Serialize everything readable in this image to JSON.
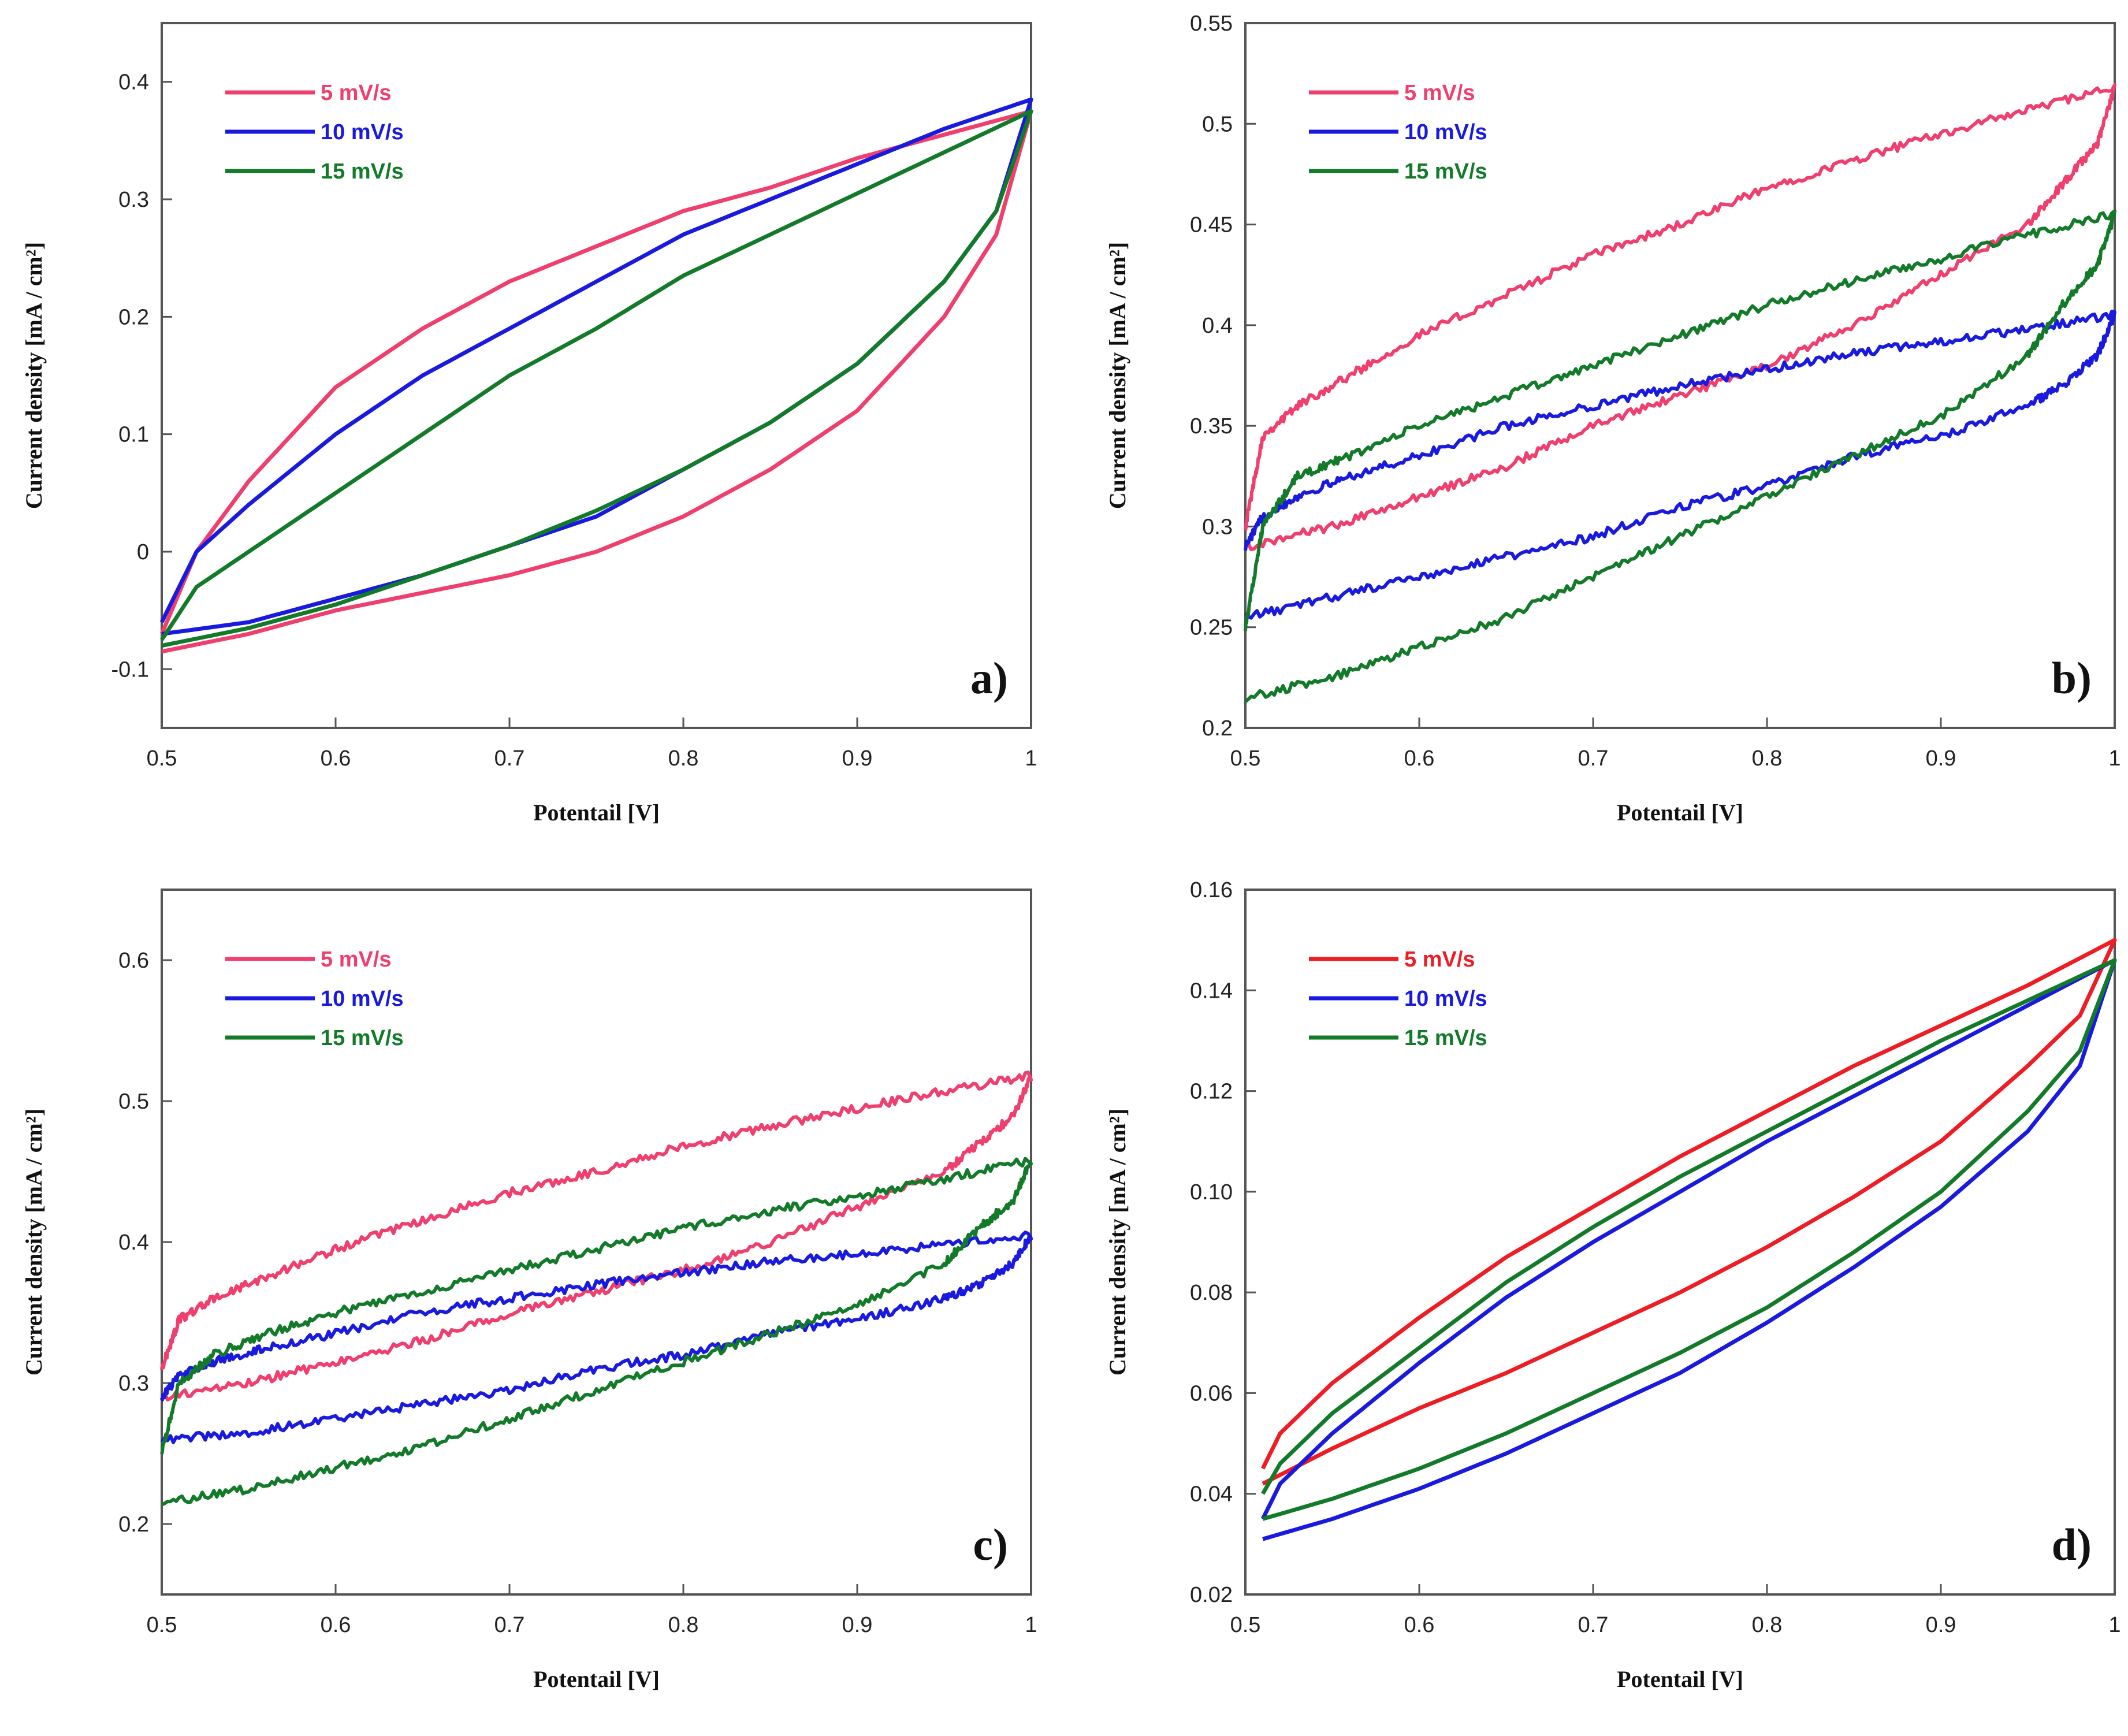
{
  "chart_data": [
    {
      "type": "line",
      "panel_label": "a)",
      "xlabel": "Potentail [V]",
      "ylabel": "Current density [mA / cm²]",
      "xlim": [
        0.5,
        1.0
      ],
      "ylim": [
        -0.15,
        0.45
      ],
      "xticks": [
        "0.5",
        "0.6",
        "0.7",
        "0.8",
        "0.9",
        "1"
      ],
      "yticks": [
        "-0.1",
        "0",
        "0.1",
        "0.2",
        "0.3",
        "0.4"
      ],
      "ytick_values": [
        -0.1,
        0,
        0.1,
        0.2,
        0.3,
        0.4
      ],
      "legend": [
        "5 mV/s",
        "10 mV/s",
        "15 mV/s"
      ],
      "colors": [
        "#ef3f6e",
        "#1a1adf",
        "#137a2a"
      ],
      "noisy": false,
      "series": [
        {
          "name": "5 mV/s",
          "anodic_x": [
            0.5,
            0.52,
            0.55,
            0.6,
            0.65,
            0.7,
            0.75,
            0.8,
            0.85,
            0.9,
            0.95,
            1.0
          ],
          "anodic_y": [
            -0.07,
            0.0,
            0.06,
            0.14,
            0.19,
            0.23,
            0.26,
            0.29,
            0.31,
            0.335,
            0.355,
            0.375
          ],
          "cathodic_x": [
            1.0,
            0.98,
            0.95,
            0.9,
            0.85,
            0.8,
            0.75,
            0.7,
            0.65,
            0.6,
            0.55,
            0.5
          ],
          "cathodic_y": [
            0.375,
            0.27,
            0.2,
            0.12,
            0.07,
            0.03,
            0.0,
            -0.02,
            -0.035,
            -0.05,
            -0.07,
            -0.085
          ]
        },
        {
          "name": "10 mV/s",
          "anodic_x": [
            0.5,
            0.52,
            0.55,
            0.6,
            0.65,
            0.7,
            0.75,
            0.8,
            0.85,
            0.9,
            0.95,
            1.0
          ],
          "anodic_y": [
            -0.06,
            0.0,
            0.04,
            0.1,
            0.15,
            0.19,
            0.23,
            0.27,
            0.3,
            0.33,
            0.36,
            0.385
          ],
          "cathodic_x": [
            1.0,
            0.98,
            0.95,
            0.9,
            0.85,
            0.8,
            0.75,
            0.7,
            0.65,
            0.6,
            0.55,
            0.5
          ],
          "cathodic_y": [
            0.385,
            0.29,
            0.23,
            0.16,
            0.11,
            0.07,
            0.03,
            0.005,
            -0.02,
            -0.04,
            -0.06,
            -0.07
          ]
        },
        {
          "name": "15 mV/s",
          "anodic_x": [
            0.5,
            0.52,
            0.55,
            0.6,
            0.65,
            0.7,
            0.75,
            0.8,
            0.85,
            0.9,
            0.95,
            1.0
          ],
          "anodic_y": [
            -0.075,
            -0.03,
            0.0,
            0.05,
            0.1,
            0.15,
            0.19,
            0.235,
            0.27,
            0.305,
            0.34,
            0.375
          ],
          "cathodic_x": [
            1.0,
            0.98,
            0.95,
            0.9,
            0.85,
            0.8,
            0.75,
            0.7,
            0.65,
            0.6,
            0.55,
            0.5
          ],
          "cathodic_y": [
            0.375,
            0.29,
            0.23,
            0.16,
            0.11,
            0.07,
            0.035,
            0.005,
            -0.02,
            -0.045,
            -0.065,
            -0.08
          ]
        }
      ]
    },
    {
      "type": "line",
      "panel_label": "b)",
      "xlabel": "Potentail [V]",
      "ylabel": "Current density [mA / cm²]",
      "xlim": [
        0.5,
        1.0
      ],
      "ylim": [
        0.2,
        0.55
      ],
      "xticks": [
        "0.5",
        "0.6",
        "0.7",
        "0.8",
        "0.9",
        "1"
      ],
      "yticks": [
        "0.2",
        "0.25",
        "0.3",
        "0.35",
        "0.4",
        "0.45",
        "0.5",
        "0.55"
      ],
      "ytick_values": [
        0.2,
        0.25,
        0.3,
        0.35,
        0.4,
        0.45,
        0.5,
        0.55
      ],
      "legend": [
        "5 mV/s",
        "10 mV/s",
        "15 mV/s"
      ],
      "colors": [
        "#ef3f6e",
        "#1a1adf",
        "#137a2a"
      ],
      "noisy": true,
      "series": [
        {
          "name": "5 mV/s",
          "anodic_x": [
            0.5,
            0.51,
            0.53,
            0.56,
            0.6,
            0.65,
            0.7,
            0.75,
            0.8,
            0.85,
            0.9,
            0.95,
            1.0
          ],
          "anodic_y": [
            0.3,
            0.345,
            0.36,
            0.375,
            0.395,
            0.415,
            0.435,
            0.45,
            0.468,
            0.482,
            0.495,
            0.507,
            0.518
          ],
          "cathodic_x": [
            1.0,
            0.99,
            0.97,
            0.95,
            0.9,
            0.85,
            0.8,
            0.75,
            0.7,
            0.65,
            0.6,
            0.55,
            0.5
          ],
          "cathodic_y": [
            0.518,
            0.49,
            0.47,
            0.45,
            0.425,
            0.4,
            0.38,
            0.365,
            0.35,
            0.33,
            0.315,
            0.3,
            0.29
          ]
        },
        {
          "name": "10 mV/s",
          "anodic_x": [
            0.5,
            0.51,
            0.53,
            0.56,
            0.6,
            0.65,
            0.7,
            0.75,
            0.8,
            0.85,
            0.9,
            0.95,
            1.0
          ],
          "anodic_y": [
            0.29,
            0.305,
            0.315,
            0.325,
            0.335,
            0.35,
            0.36,
            0.37,
            0.378,
            0.386,
            0.392,
            0.398,
            0.405
          ],
          "cathodic_x": [
            1.0,
            0.99,
            0.97,
            0.95,
            0.9,
            0.85,
            0.8,
            0.75,
            0.7,
            0.65,
            0.6,
            0.55,
            0.5
          ],
          "cathodic_y": [
            0.405,
            0.385,
            0.37,
            0.36,
            0.345,
            0.335,
            0.32,
            0.31,
            0.295,
            0.285,
            0.275,
            0.265,
            0.255
          ]
        },
        {
          "name": "15 mV/s",
          "anodic_x": [
            0.5,
            0.51,
            0.53,
            0.56,
            0.6,
            0.65,
            0.7,
            0.75,
            0.8,
            0.85,
            0.9,
            0.95,
            1.0
          ],
          "anodic_y": [
            0.25,
            0.3,
            0.325,
            0.335,
            0.35,
            0.365,
            0.38,
            0.395,
            0.41,
            0.422,
            0.433,
            0.445,
            0.455
          ],
          "cathodic_x": [
            1.0,
            0.99,
            0.97,
            0.95,
            0.9,
            0.85,
            0.8,
            0.75,
            0.7,
            0.65,
            0.6,
            0.55,
            0.5
          ],
          "cathodic_y": [
            0.455,
            0.43,
            0.41,
            0.385,
            0.355,
            0.335,
            0.315,
            0.295,
            0.275,
            0.255,
            0.24,
            0.225,
            0.215
          ]
        }
      ]
    },
    {
      "type": "line",
      "panel_label": "c)",
      "xlabel": "Potentail [V]",
      "ylabel": "Current density [mA / cm²]",
      "xlim": [
        0.5,
        1.0
      ],
      "ylim": [
        0.15,
        0.65
      ],
      "xticks": [
        "0.5",
        "0.6",
        "0.7",
        "0.8",
        "0.9",
        "1"
      ],
      "yticks": [
        "0.2",
        "0.3",
        "0.4",
        "0.5",
        "0.6"
      ],
      "ytick_values": [
        0.2,
        0.3,
        0.4,
        0.5,
        0.6
      ],
      "legend": [
        "5 mV/s",
        "10 mV/s",
        "15 mV/s"
      ],
      "colors": [
        "#ef3f6e",
        "#1a1adf",
        "#137a2a"
      ],
      "noisy": true,
      "series": [
        {
          "name": "5 mV/s",
          "anodic_x": [
            0.5,
            0.51,
            0.53,
            0.56,
            0.6,
            0.65,
            0.7,
            0.75,
            0.8,
            0.85,
            0.9,
            0.95,
            1.0
          ],
          "anodic_y": [
            0.31,
            0.345,
            0.36,
            0.375,
            0.395,
            0.415,
            0.435,
            0.45,
            0.468,
            0.482,
            0.495,
            0.507,
            0.518
          ],
          "cathodic_x": [
            1.0,
            0.99,
            0.97,
            0.95,
            0.9,
            0.85,
            0.8,
            0.75,
            0.7,
            0.65,
            0.6,
            0.55,
            0.5
          ],
          "cathodic_y": [
            0.518,
            0.49,
            0.47,
            0.45,
            0.425,
            0.4,
            0.38,
            0.365,
            0.35,
            0.33,
            0.315,
            0.3,
            0.29
          ]
        },
        {
          "name": "10 mV/s",
          "anodic_x": [
            0.5,
            0.51,
            0.53,
            0.56,
            0.6,
            0.65,
            0.7,
            0.75,
            0.8,
            0.85,
            0.9,
            0.95,
            1.0
          ],
          "anodic_y": [
            0.29,
            0.305,
            0.315,
            0.325,
            0.335,
            0.35,
            0.36,
            0.37,
            0.378,
            0.386,
            0.392,
            0.398,
            0.405
          ],
          "cathodic_x": [
            1.0,
            0.99,
            0.97,
            0.95,
            0.9,
            0.85,
            0.8,
            0.75,
            0.7,
            0.65,
            0.6,
            0.55,
            0.5
          ],
          "cathodic_y": [
            0.405,
            0.385,
            0.37,
            0.36,
            0.345,
            0.335,
            0.32,
            0.31,
            0.295,
            0.285,
            0.275,
            0.265,
            0.26
          ]
        },
        {
          "name": "15 mV/s",
          "anodic_x": [
            0.5,
            0.51,
            0.53,
            0.56,
            0.6,
            0.65,
            0.7,
            0.75,
            0.8,
            0.85,
            0.9,
            0.95,
            1.0
          ],
          "anodic_y": [
            0.25,
            0.3,
            0.32,
            0.335,
            0.35,
            0.365,
            0.38,
            0.395,
            0.41,
            0.422,
            0.433,
            0.445,
            0.458
          ],
          "cathodic_x": [
            1.0,
            0.99,
            0.97,
            0.95,
            0.9,
            0.85,
            0.8,
            0.75,
            0.7,
            0.65,
            0.6,
            0.55,
            0.5
          ],
          "cathodic_y": [
            0.458,
            0.43,
            0.41,
            0.385,
            0.355,
            0.335,
            0.315,
            0.295,
            0.275,
            0.255,
            0.24,
            0.225,
            0.215
          ]
        }
      ]
    },
    {
      "type": "line",
      "panel_label": "d)",
      "xlabel": "Potentail [V]",
      "ylabel": "Current density [mA / cm²]",
      "xlim": [
        0.5,
        1.0
      ],
      "ylim": [
        0.02,
        0.16
      ],
      "xticks": [
        "0.5",
        "0.6",
        "0.7",
        "0.8",
        "0.9",
        "1"
      ],
      "yticks": [
        "0.02",
        "0.04",
        "0.06",
        "0.08",
        "0.10",
        "0.12",
        "0.14",
        "0.16"
      ],
      "ytick_values": [
        0.02,
        0.04,
        0.06,
        0.08,
        0.1,
        0.12,
        0.14,
        0.16
      ],
      "legend": [
        "5 mV/s",
        "10 mV/s",
        "15 mV/s"
      ],
      "colors": [
        "#ee1c24",
        "#1a1adf",
        "#137a2a"
      ],
      "noisy": false,
      "series": [
        {
          "name": "5 mV/s",
          "anodic_x": [
            0.51,
            0.52,
            0.55,
            0.6,
            0.65,
            0.7,
            0.75,
            0.8,
            0.85,
            0.9,
            0.95,
            1.0
          ],
          "anodic_y": [
            0.045,
            0.052,
            0.062,
            0.075,
            0.087,
            0.097,
            0.107,
            0.116,
            0.125,
            0.133,
            0.141,
            0.15
          ],
          "cathodic_x": [
            1.0,
            0.98,
            0.95,
            0.9,
            0.85,
            0.8,
            0.75,
            0.7,
            0.65,
            0.6,
            0.55,
            0.51
          ],
          "cathodic_y": [
            0.15,
            0.135,
            0.125,
            0.11,
            0.099,
            0.089,
            0.08,
            0.072,
            0.064,
            0.057,
            0.049,
            0.042
          ]
        },
        {
          "name": "10 mV/s",
          "anodic_x": [
            0.51,
            0.52,
            0.55,
            0.6,
            0.65,
            0.7,
            0.75,
            0.8,
            0.85,
            0.9,
            0.95,
            1.0
          ],
          "anodic_y": [
            0.035,
            0.042,
            0.052,
            0.066,
            0.079,
            0.09,
            0.1,
            0.11,
            0.119,
            0.128,
            0.137,
            0.146
          ],
          "cathodic_x": [
            1.0,
            0.98,
            0.95,
            0.9,
            0.85,
            0.8,
            0.75,
            0.7,
            0.65,
            0.6,
            0.55,
            0.51
          ],
          "cathodic_y": [
            0.146,
            0.125,
            0.112,
            0.097,
            0.085,
            0.074,
            0.064,
            0.056,
            0.048,
            0.041,
            0.035,
            0.031
          ]
        },
        {
          "name": "15 mV/s",
          "anodic_x": [
            0.51,
            0.52,
            0.55,
            0.6,
            0.65,
            0.7,
            0.75,
            0.8,
            0.85,
            0.9,
            0.95,
            1.0
          ],
          "anodic_y": [
            0.04,
            0.046,
            0.056,
            0.069,
            0.082,
            0.093,
            0.103,
            0.112,
            0.121,
            0.13,
            0.138,
            0.146
          ],
          "cathodic_x": [
            1.0,
            0.98,
            0.95,
            0.9,
            0.85,
            0.8,
            0.75,
            0.7,
            0.65,
            0.6,
            0.55,
            0.51
          ],
          "cathodic_y": [
            0.146,
            0.128,
            0.116,
            0.1,
            0.088,
            0.077,
            0.068,
            0.06,
            0.052,
            0.045,
            0.039,
            0.035
          ]
        }
      ]
    }
  ]
}
